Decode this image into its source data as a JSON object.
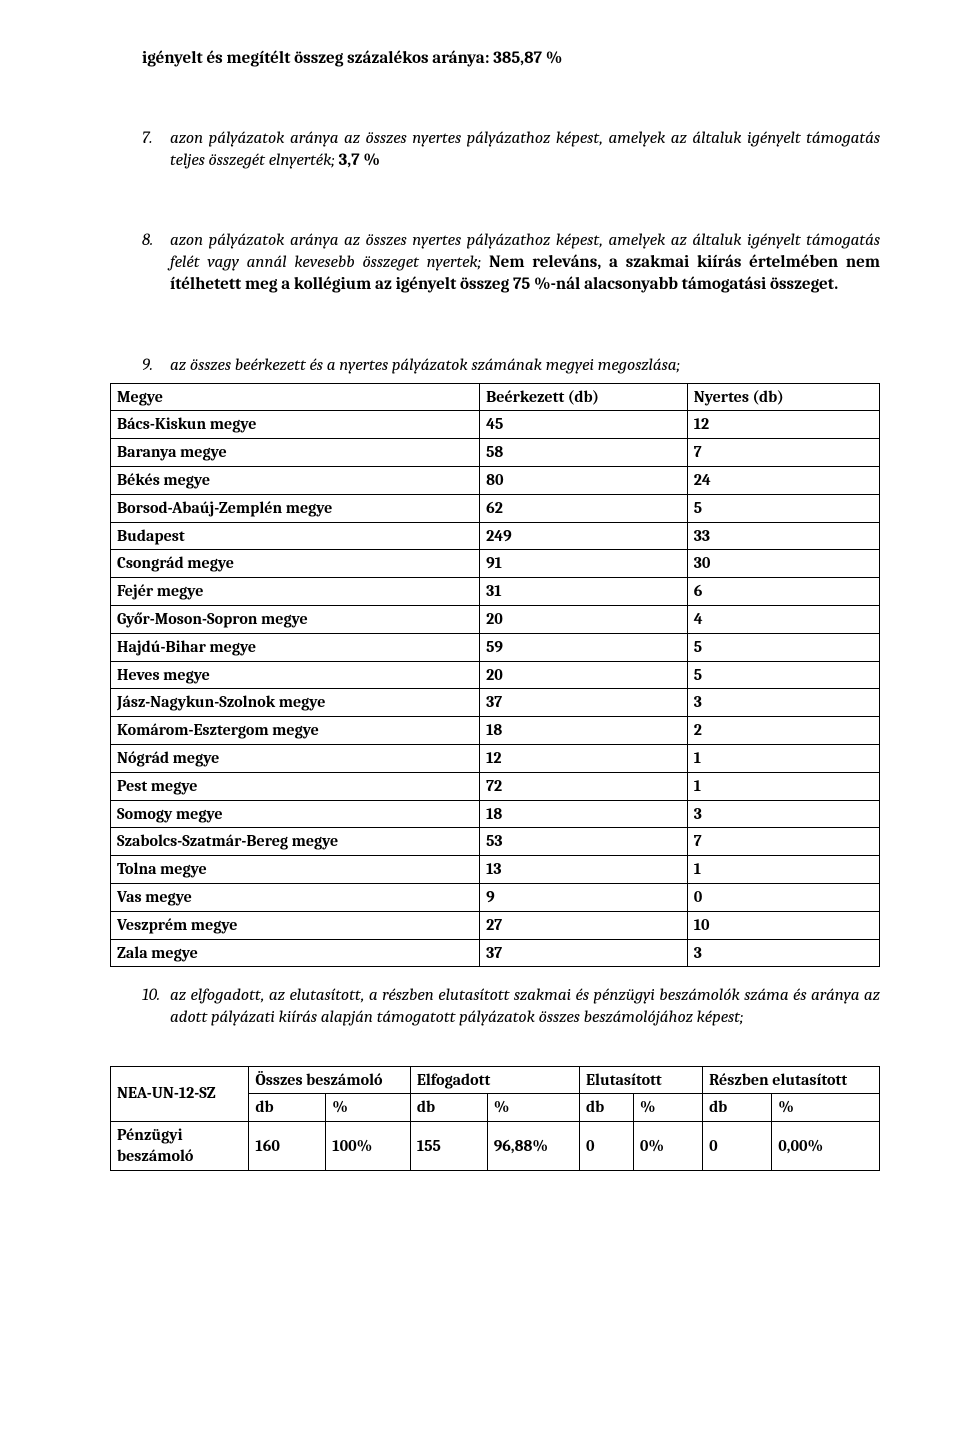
{
  "heading": {
    "prefix": "igényelt és megítélt összeg százalékos aránya: ",
    "value": "385,87 %"
  },
  "item7": {
    "num": "7.",
    "italic": "azon pályázatok aránya az összes nyertes pályázathoz képest, amelyek az általuk igényelt támogatás teljes összegét elnyerték; ",
    "bold": "3,7 %"
  },
  "item8": {
    "num": "8.",
    "italic": "azon pályázatok aránya az összes nyertes pályázathoz képest, amelyek az általuk igényelt támogatás felét vagy annál kevesebb összeget nyertek; ",
    "bold": "Nem releváns, a szakmai kiírás értelmében nem ítélhetett meg a kollégium az igényelt összeg 75 %-nál alacsonyabb támogatási összeget."
  },
  "item9": {
    "num": "9.",
    "italic": "az összes beérkezett és a nyertes pályázatok számának megyei megoszlása;"
  },
  "table1": {
    "type": "table",
    "columns": [
      "Megye",
      "Beérkezett (db)",
      "Nyertes (db)"
    ],
    "col_widths": [
      "48%",
      "27%",
      "25%"
    ],
    "border_color": "#000000",
    "background_color": "#ffffff",
    "font_size_pt": 12,
    "rows": [
      [
        "Bács-Kiskun megye",
        "45",
        "12"
      ],
      [
        "Baranya megye",
        "58",
        "7"
      ],
      [
        "Békés megye",
        "80",
        "24"
      ],
      [
        "Borsod-Abaúj-Zemplén megye",
        "62",
        "5"
      ],
      [
        "Budapest",
        "249",
        "33"
      ],
      [
        "Csongrád megye",
        "91",
        "30"
      ],
      [
        "Fejér megye",
        "31",
        "6"
      ],
      [
        "Győr-Moson-Sopron megye",
        "20",
        "4"
      ],
      [
        "Hajdú-Bihar megye",
        "59",
        "5"
      ],
      [
        "Heves megye",
        "20",
        "5"
      ],
      [
        "Jász-Nagykun-Szolnok megye",
        "37",
        "3"
      ],
      [
        "Komárom-Esztergom megye",
        "18",
        "2"
      ],
      [
        "Nógrád megye",
        "12",
        "1"
      ],
      [
        "Pest megye",
        "72",
        "1"
      ],
      [
        "Somogy megye",
        "18",
        "3"
      ],
      [
        "Szabolcs-Szatmár-Bereg megye",
        "53",
        "7"
      ],
      [
        "Tolna megye",
        "13",
        "1"
      ],
      [
        "Vas megye",
        "9",
        "0"
      ],
      [
        "Veszprém megye",
        "27",
        "10"
      ],
      [
        "Zala megye",
        "37",
        "3"
      ]
    ]
  },
  "item10": {
    "num": "10.",
    "italic": "az elfogadott, az elutasított, a részben elutasított szakmai és pénzügyi beszámolók száma és aránya az adott pályázati kiírás alapján támogatott pályázatok összes beszámolójához képest;"
  },
  "table2": {
    "type": "table",
    "row_label": "NEA-UN-12-SZ",
    "header_top": [
      "Összes beszámoló",
      "Elfogadott",
      "Elutasított",
      "Részben elutasított"
    ],
    "header_sub": [
      "db",
      "%",
      "db",
      "%",
      "db",
      "%",
      "db",
      "%"
    ],
    "col_widths": [
      "18%",
      "10%",
      "11%",
      "10%",
      "12%",
      "7%",
      "9%",
      "9%",
      "14%"
    ],
    "border_color": "#000000",
    "background_color": "#ffffff",
    "font_size_pt": 12,
    "data_row_label": "Pénzügyi beszámoló",
    "data_row": [
      "160",
      "100%",
      "155",
      "96,88%",
      "0",
      "0%",
      "0",
      "0,00%"
    ]
  }
}
